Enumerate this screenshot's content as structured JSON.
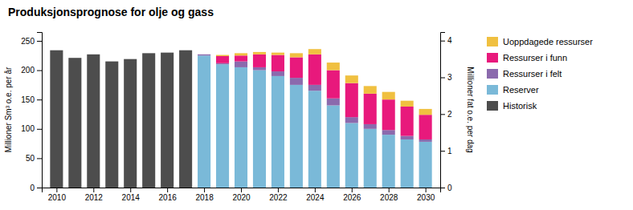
{
  "chart_data": {
    "type": "bar",
    "stacked": true,
    "title": "Produksjonsprognose for olje og gass",
    "ylabel": "Millioner Sm³ o.e. per år",
    "y2label": "Millioner fat o.e. per dag",
    "x": [
      2010,
      2011,
      2012,
      2013,
      2014,
      2015,
      2016,
      2017,
      2018,
      2019,
      2020,
      2021,
      2022,
      2023,
      2024,
      2025,
      2026,
      2027,
      2028,
      2029,
      2030
    ],
    "series": [
      {
        "name": "Historisk",
        "color": "#4d4d4d",
        "values": [
          234,
          221,
          227,
          215,
          219,
          229,
          230,
          234,
          null,
          null,
          null,
          null,
          null,
          null,
          null,
          null,
          null,
          null,
          null,
          null,
          null
        ]
      },
      {
        "name": "Reserver",
        "color": "#7ab9d8",
        "values": [
          null,
          null,
          null,
          null,
          null,
          null,
          null,
          null,
          225,
          210,
          205,
          200,
          190,
          175,
          165,
          140,
          110,
          100,
          90,
          82,
          78
        ]
      },
      {
        "name": "Ressurser i felt",
        "color": "#8b6aad",
        "values": [
          null,
          null,
          null,
          null,
          null,
          null,
          null,
          null,
          2,
          2,
          10,
          5,
          8,
          12,
          10,
          12,
          10,
          8,
          8,
          6,
          4
        ]
      },
      {
        "name": "Ressurser i funn",
        "color": "#e8197c",
        "values": [
          null,
          null,
          null,
          null,
          null,
          null,
          null,
          null,
          0,
          12,
          10,
          22,
          28,
          35,
          52,
          48,
          58,
          52,
          52,
          50,
          42
        ]
      },
      {
        "name": "Uoppdagede ressurser",
        "color": "#f0c040",
        "values": [
          null,
          null,
          null,
          null,
          null,
          null,
          null,
          null,
          0,
          2,
          4,
          4,
          4,
          7,
          9,
          13,
          13,
          13,
          13,
          10,
          10
        ]
      }
    ],
    "xlim": [
      2009.2,
      2030.8
    ],
    "xticks": [
      2010,
      2012,
      2014,
      2016,
      2018,
      2020,
      2022,
      2024,
      2026,
      2028,
      2030
    ],
    "ylim": [
      0,
      265
    ],
    "yticks": [
      0,
      50,
      100,
      150,
      200,
      250
    ],
    "y2lim": [
      0,
      4.233
    ],
    "y2ticks": [
      0,
      1,
      2,
      3,
      4
    ],
    "legend": "right"
  }
}
